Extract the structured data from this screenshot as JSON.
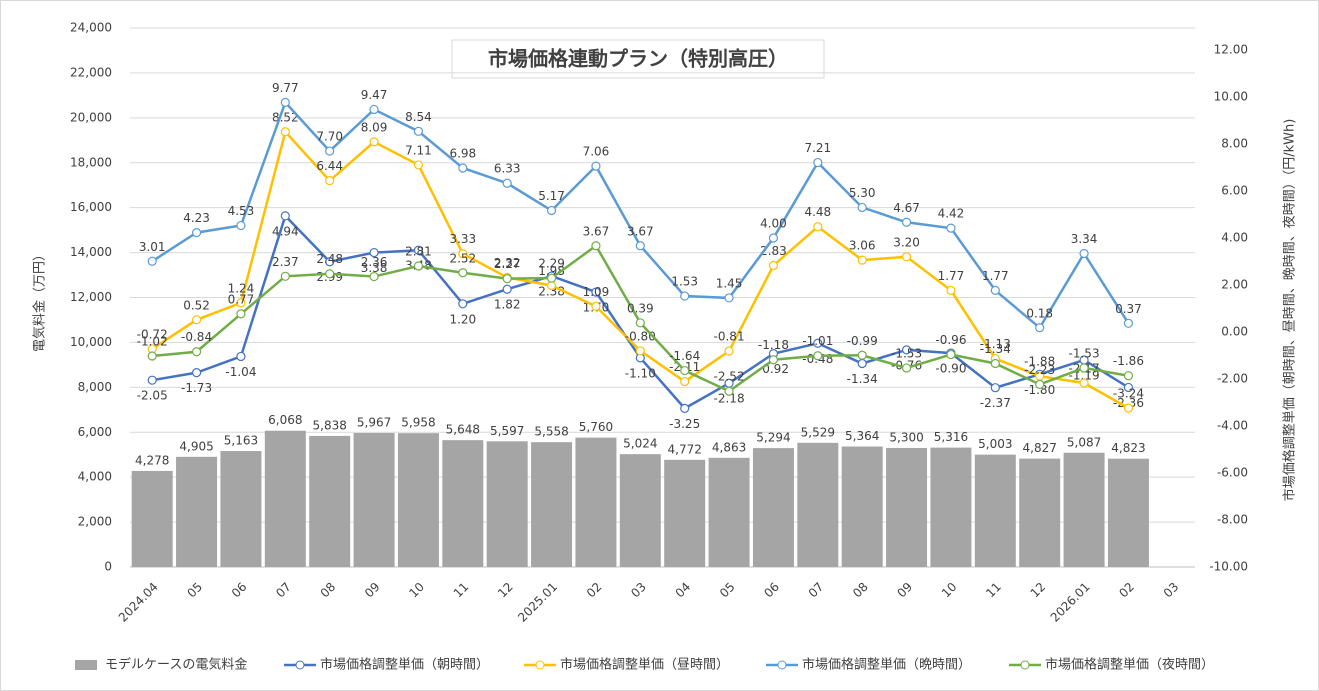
{
  "chart_data": {
    "type": "bar",
    "title": "市場価格連動プラン（特別高圧）",
    "y_label": "電気料金（万円）",
    "y2_label": "市場価格調整単価（朝時間、昼時間、晩時間、夜時間）（円/kWh)",
    "categories": [
      "2024.04",
      "05",
      "06",
      "07",
      "08",
      "09",
      "10",
      "11",
      "12",
      "2025.01",
      "02",
      "03",
      "04",
      "05",
      "06",
      "07",
      "08",
      "09",
      "10",
      "11",
      "12",
      "2026.01",
      "02",
      "03"
    ],
    "ylim": [
      0,
      24000
    ],
    "yticks": [
      0,
      {
        "value": 2000,
        "label": "2,000"
      },
      {
        "value": 4000,
        "label": "4,000"
      },
      {
        "value": 6000,
        "label": "6,000"
      },
      {
        "value": 8000,
        "label": "8,000"
      },
      {
        "value": 10000,
        "label": "10,000"
      },
      {
        "value": 12000,
        "label": "12,000"
      },
      {
        "value": 14000,
        "label": "14,000"
      },
      {
        "value": 16000,
        "label": "16,000"
      },
      {
        "value": 18000,
        "label": "18,000"
      },
      {
        "value": 20000,
        "label": "20,000"
      },
      {
        "value": 22000,
        "label": "22,000"
      },
      {
        "value": 24000,
        "label": "24,000"
      }
    ],
    "y2lim": [
      -10,
      12
    ],
    "y2ticks": [
      {
        "value": -10,
        "label": "-10.00"
      },
      {
        "value": -8,
        "label": "-8.00"
      },
      {
        "value": -6,
        "label": "-6.00"
      },
      {
        "value": -4,
        "label": "-4.00"
      },
      {
        "value": -2,
        "label": "-2.00"
      },
      {
        "value": 0,
        "label": "0.00"
      },
      {
        "value": 2,
        "label": "2.00"
      },
      {
        "value": 4,
        "label": "4.00"
      },
      {
        "value": 6,
        "label": "6.00"
      },
      {
        "value": 8,
        "label": "8.00"
      },
      {
        "value": 10,
        "label": "10.00"
      },
      {
        "value": 12,
        "label": "12.00"
      }
    ],
    "grid": true,
    "legend": "bottom",
    "series": [
      {
        "name": "モデルケースの電気料金",
        "type": "bar",
        "color": "#a5a5a5",
        "values": [
          4278,
          4905,
          5163,
          6068,
          5838,
          5967,
          5958,
          5648,
          5597,
          5558,
          5760,
          5024,
          4772,
          4863,
          5294,
          5529,
          5364,
          5300,
          5316,
          5003,
          4827,
          5087,
          4823,
          null
        ],
        "value_labels": [
          "4,278",
          "4,905",
          "5,163",
          "6,068",
          "5,838",
          "5,967",
          "5,958",
          "5,648",
          "5,597",
          "5,558",
          "5,760",
          "5,024",
          "4,772",
          "4,863",
          "5,294",
          "5,529",
          "5,364",
          "5,300",
          "5,316",
          "5,003",
          "4,827",
          "5,087",
          "4,823",
          null
        ]
      },
      {
        "name": "市場価格調整単価（朝時間）",
        "type": "line",
        "axis": "y2",
        "color": "#4472c4",
        "values": [
          -2.05,
          -1.73,
          -1.04,
          4.94,
          2.99,
          3.38,
          3.48,
          1.2,
          1.82,
          2.38,
          1.7,
          -1.1,
          -3.25,
          -2.18,
          -0.92,
          -0.48,
          -1.34,
          -0.76,
          -0.9,
          -2.37,
          -1.8,
          -1.19,
          -2.36,
          null
        ],
        "value_labels": [
          "-2.05",
          "-1.73",
          "-1.04",
          "4.94",
          "2.99",
          "3.38",
          "3.48",
          "1.20",
          "1.82",
          "2.38",
          "1.70",
          "-1.10",
          "-3.25",
          "-2.18",
          "-0.92",
          "-0.48",
          "-1.34",
          "-0.76",
          "-0.90",
          "-2.37",
          "-1.80",
          "-1.19",
          "-2.36",
          null
        ]
      },
      {
        "name": "市場価格調整単価（昼時間）",
        "type": "line",
        "axis": "y2",
        "color": "#ffc000",
        "values": [
          -0.72,
          0.52,
          1.24,
          8.52,
          6.44,
          8.09,
          7.11,
          3.33,
          2.32,
          1.98,
          1.09,
          -0.8,
          -2.11,
          -0.81,
          2.83,
          4.48,
          3.06,
          3.2,
          1.77,
          -1.13,
          -1.88,
          -2.17,
          -3.24,
          null
        ],
        "value_labels": [
          "-0.72",
          "0.52",
          "1.24",
          "8.52",
          "6.44",
          "8.09",
          "7.11",
          "3.33",
          "2.32",
          "1.98",
          "1.09",
          "-0.80",
          "-2.11",
          "-0.81",
          "2.83",
          "4.48",
          "3.06",
          "3.20",
          "1.77",
          "-1.13",
          "-1.88",
          "-2.17",
          "-3.24",
          null
        ]
      },
      {
        "name": "市場価格調整単価（晩時間）",
        "type": "line",
        "axis": "y2",
        "color": "#5b9bd5",
        "values": [
          3.01,
          4.23,
          4.53,
          9.77,
          7.7,
          9.47,
          8.54,
          6.98,
          6.33,
          5.17,
          7.06,
          3.67,
          1.53,
          1.45,
          4.0,
          7.21,
          5.3,
          4.67,
          4.42,
          1.77,
          0.18,
          3.34,
          0.37,
          null
        ],
        "value_labels": [
          "3.01",
          "4.23",
          "4.53",
          "9.77",
          "7.70",
          "9.47",
          "8.54",
          "6.98",
          "6.33",
          "5.17",
          "7.06",
          "3.67",
          "1.53",
          "1.45",
          "4.00",
          "7.21",
          "5.30",
          "4.67",
          "4.42",
          "1.77",
          "0.18",
          "3.34",
          "0.37",
          null
        ]
      },
      {
        "name": "市場価格調整単価（夜時間）",
        "type": "line",
        "axis": "y2",
        "color": "#70ad47",
        "values": [
          -1.02,
          -0.84,
          0.77,
          2.37,
          2.48,
          2.36,
          2.81,
          2.52,
          2.27,
          2.29,
          3.67,
          0.39,
          -1.64,
          -2.52,
          -1.18,
          -1.01,
          -0.99,
          -1.53,
          -0.96,
          -1.34,
          -2.23,
          -1.53,
          -1.86,
          null
        ],
        "value_labels": [
          "-1.02",
          "-0.84",
          "0.77",
          "2.37",
          "2.48",
          "2.36",
          "2.81",
          "2.52",
          "2.27",
          "2.29",
          "3.67",
          "0.39",
          "-1.64",
          "-2.52",
          "-1.18",
          "-1.01",
          "-0.99",
          "-1.53",
          "-0.96",
          "-1.34",
          "-2.23",
          "-1.53",
          "-1.86",
          null
        ]
      }
    ]
  }
}
